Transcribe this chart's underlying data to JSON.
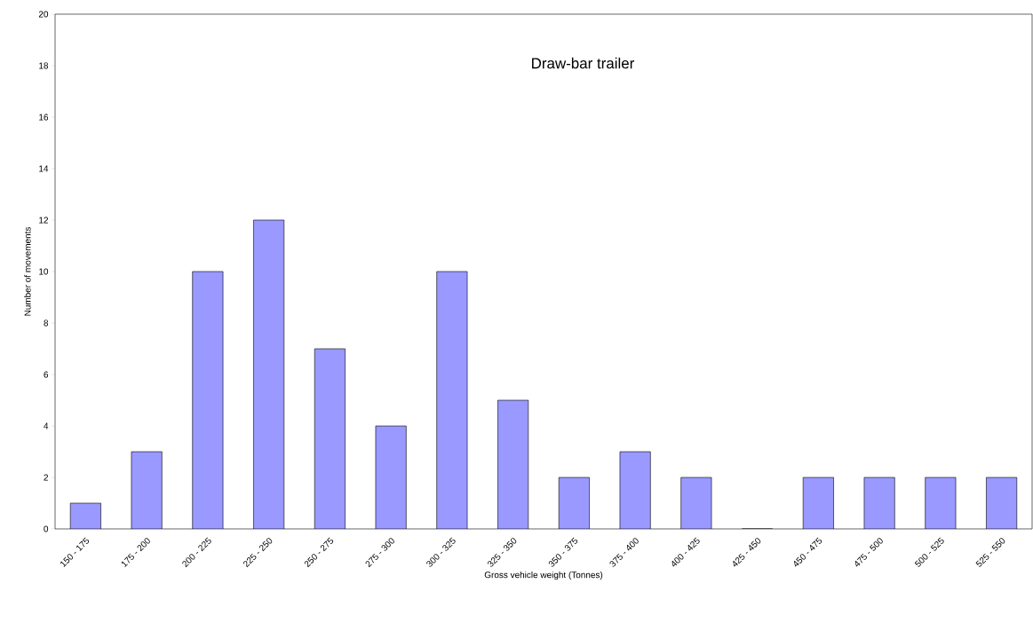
{
  "chart_data": {
    "type": "bar",
    "title": "Draw-bar trailer",
    "xlabel": "Gross vehicle weight (Tonnes)",
    "ylabel": "Number of movements",
    "categories": [
      "150 - 175",
      "175 - 200",
      "200 - 225",
      "225 - 250",
      "250 - 275",
      "275 - 300",
      "300 - 325",
      "325 - 350",
      "350 - 375",
      "375 - 400",
      "400 - 425",
      "425 - 450",
      "450 - 475",
      "475 - 500",
      "500 - 525",
      "525 - 550"
    ],
    "values": [
      1,
      3,
      10,
      12,
      7,
      4,
      10,
      5,
      2,
      3,
      2,
      0,
      2,
      2,
      2,
      2
    ],
    "color": "#9999ff",
    "ylim": [
      0,
      20
    ],
    "yticks": [
      0,
      2,
      4,
      6,
      8,
      10,
      12,
      14,
      16,
      18,
      20
    ]
  }
}
